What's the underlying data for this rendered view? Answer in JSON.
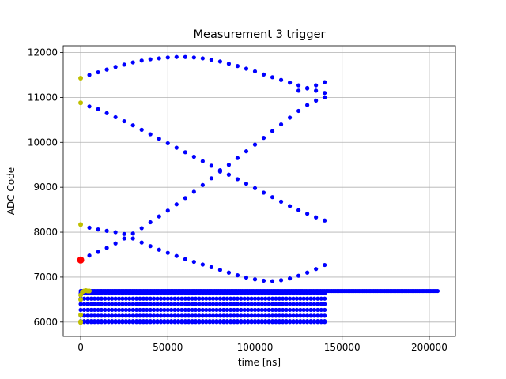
{
  "chart_data": {
    "type": "scatter",
    "title": "Measurement 3 trigger",
    "xlabel": "time [ns]",
    "ylabel": "ADC Code",
    "xlim": [
      -10000,
      215000
    ],
    "ylim": [
      5680,
      12150
    ],
    "xticks": [
      0,
      50000,
      100000,
      150000,
      200000
    ],
    "yticks": [
      6000,
      7000,
      8000,
      9000,
      10000,
      11000,
      12000
    ],
    "grid": true,
    "colors": {
      "main": "#0000ff",
      "start": "#bfbf00",
      "trigger": "#ff0000"
    },
    "series": [
      {
        "role": "upper-arc",
        "color": "#0000ff",
        "x": [
          5000,
          10000,
          15000,
          20000,
          25000,
          30000,
          35000,
          40000,
          45000,
          50000,
          55000,
          60000,
          65000,
          70000,
          75000,
          80000,
          85000,
          90000,
          95000,
          100000,
          105000,
          110000,
          115000,
          120000,
          125000,
          130000,
          135000,
          140000
        ],
        "y": [
          11500,
          11560,
          11620,
          11680,
          11730,
          11780,
          11820,
          11850,
          11870,
          11890,
          11900,
          11900,
          11890,
          11870,
          11840,
          11800,
          11750,
          11700,
          11640,
          11580,
          11510,
          11450,
          11390,
          11330,
          11270,
          11210,
          11150,
          11100
        ]
      },
      {
        "role": "upper-rising",
        "color": "#0000ff",
        "x": [
          125000,
          130000,
          135000,
          140000
        ],
        "y": [
          11150,
          11200,
          11270,
          11340
        ]
      },
      {
        "role": "falling-diagonal",
        "color": "#0000ff",
        "x": [
          5000,
          10000,
          15000,
          20000,
          25000,
          30000,
          35000,
          40000,
          45000,
          50000,
          55000,
          60000,
          65000,
          70000,
          75000,
          80000,
          85000,
          90000,
          95000,
          100000,
          105000,
          110000,
          115000,
          120000,
          125000,
          130000,
          135000,
          140000
        ],
        "y": [
          10800,
          10740,
          10650,
          10560,
          10470,
          10380,
          10280,
          10180,
          10080,
          9980,
          9880,
          9780,
          9680,
          9580,
          9480,
          9380,
          9280,
          9180,
          9080,
          8980,
          8880,
          8780,
          8680,
          8580,
          8490,
          8410,
          8330,
          8260
        ]
      },
      {
        "role": "rising-diagonal",
        "color": "#0000ff",
        "x": [
          5000,
          10000,
          15000,
          20000,
          25000,
          30000,
          35000,
          40000,
          45000,
          50000,
          55000,
          60000,
          65000,
          70000,
          75000,
          80000,
          85000,
          90000,
          95000,
          100000,
          105000,
          110000,
          115000,
          120000,
          125000,
          130000,
          135000,
          140000
        ],
        "y": [
          7480,
          7560,
          7650,
          7750,
          7860,
          7970,
          8090,
          8220,
          8350,
          8480,
          8620,
          8760,
          8900,
          9050,
          9200,
          9350,
          9500,
          9650,
          9800,
          9950,
          10100,
          10250,
          10400,
          10550,
          10700,
          10830,
          10930,
          11000
        ]
      },
      {
        "role": "lower-arc",
        "color": "#0000ff",
        "x": [
          5000,
          10000,
          15000,
          20000,
          25000,
          30000,
          35000,
          40000,
          45000,
          50000,
          55000,
          60000,
          65000,
          70000,
          75000,
          80000,
          85000,
          90000,
          95000,
          100000,
          105000,
          110000,
          115000,
          120000,
          125000,
          130000,
          135000,
          140000
        ],
        "y": [
          8100,
          8060,
          8030,
          8000,
          7960,
          7860,
          7770,
          7690,
          7610,
          7540,
          7470,
          7400,
          7340,
          7280,
          7220,
          7160,
          7100,
          7040,
          6990,
          6950,
          6920,
          6910,
          6930,
          6970,
          7030,
          7100,
          7180,
          7270
        ]
      },
      {
        "role": "baseline",
        "color": "#0000ff",
        "x_start": 0,
        "x_end": 205000,
        "x_step": 800,
        "y": 6690
      },
      {
        "role": "lower-bands",
        "color": "#0000ff",
        "x_start": 0,
        "x_end": 140000,
        "x_step": 2000,
        "y_levels": [
          6000,
          6020,
          6140,
          6270,
          6400,
          6520,
          6640
        ]
      },
      {
        "role": "start-points",
        "color": "#bfbf00",
        "x": [
          0,
          0,
          0,
          0,
          0,
          0,
          1000,
          2000,
          3000,
          4000,
          5000,
          0,
          0
        ],
        "y": [
          11430,
          10880,
          8170,
          6160,
          6500,
          6600,
          6670,
          6690,
          6700,
          6690,
          6690,
          6010,
          5990
        ]
      },
      {
        "role": "trigger-point",
        "color": "#ff0000",
        "x": [
          0
        ],
        "y": [
          7380
        ]
      }
    ]
  }
}
